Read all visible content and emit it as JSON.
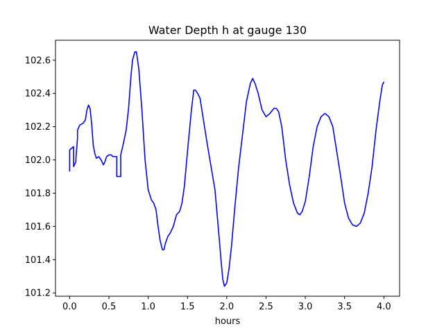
{
  "chart_data": {
    "type": "line",
    "title": "Water Depth h at gauge 130",
    "xlabel": "hours",
    "ylabel": "",
    "xlim": [
      -0.18,
      4.2
    ],
    "ylim": [
      101.18,
      102.72
    ],
    "xticks": [
      0.0,
      0.5,
      1.0,
      1.5,
      2.0,
      2.5,
      3.0,
      3.5,
      4.0
    ],
    "xtick_labels": [
      "0.0",
      "0.5",
      "1.0",
      "1.5",
      "2.0",
      "2.5",
      "3.0",
      "3.5",
      "4.0"
    ],
    "yticks": [
      101.2,
      101.4,
      101.6,
      101.8,
      102.0,
      102.2,
      102.4,
      102.6
    ],
    "ytick_labels": [
      "101.2",
      "101.4",
      "101.6",
      "101.8",
      "102.0",
      "102.2",
      "102.4",
      "102.6"
    ],
    "grid": false,
    "series": [
      {
        "color": "#0000ff",
        "x": [
          0.0,
          0.0,
          0.05,
          0.05,
          0.08,
          0.08,
          0.1,
          0.1,
          0.13,
          0.17,
          0.2,
          0.22,
          0.24,
          0.26,
          0.28,
          0.3,
          0.32,
          0.34,
          0.37,
          0.4,
          0.43,
          0.45,
          0.47,
          0.5,
          0.53,
          0.55,
          0.6,
          0.6,
          0.65,
          0.65,
          0.68,
          0.72,
          0.75,
          0.78,
          0.8,
          0.83,
          0.85,
          0.88,
          0.92,
          0.96,
          1.0,
          1.04,
          1.07,
          1.1,
          1.12,
          1.15,
          1.18,
          1.2,
          1.22,
          1.25,
          1.28,
          1.32,
          1.36,
          1.4,
          1.43,
          1.46,
          1.5,
          1.55,
          1.58,
          1.6,
          1.63,
          1.66,
          1.7,
          1.75,
          1.8,
          1.85,
          1.9,
          1.93,
          1.95,
          1.97,
          2.0,
          2.03,
          2.06,
          2.1,
          2.15,
          2.2,
          2.25,
          2.3,
          2.33,
          2.36,
          2.4,
          2.45,
          2.5,
          2.55,
          2.6,
          2.63,
          2.66,
          2.7,
          2.75,
          2.8,
          2.85,
          2.9,
          2.93,
          2.96,
          3.0,
          3.05,
          3.1,
          3.15,
          3.2,
          3.25,
          3.3,
          3.35,
          3.4,
          3.45,
          3.5,
          3.55,
          3.6,
          3.65,
          3.7,
          3.75,
          3.8,
          3.85,
          3.9,
          3.95,
          3.98,
          4.0
        ],
        "y": [
          101.93,
          102.06,
          102.08,
          101.96,
          101.99,
          102.01,
          102.13,
          102.18,
          102.21,
          102.22,
          102.24,
          102.3,
          102.33,
          102.31,
          102.22,
          102.09,
          102.04,
          102.01,
          102.02,
          102.0,
          101.97,
          101.99,
          102.02,
          102.03,
          102.03,
          102.02,
          102.02,
          101.9,
          101.9,
          102.03,
          102.09,
          102.18,
          102.31,
          102.5,
          102.6,
          102.65,
          102.65,
          102.55,
          102.3,
          102.0,
          101.82,
          101.76,
          101.74,
          101.7,
          101.62,
          101.52,
          101.46,
          101.46,
          101.5,
          101.54,
          101.56,
          101.6,
          101.67,
          101.69,
          101.74,
          101.84,
          102.05,
          102.3,
          102.42,
          102.42,
          102.4,
          102.37,
          102.25,
          102.1,
          101.96,
          101.82,
          101.55,
          101.38,
          101.28,
          101.24,
          101.26,
          101.35,
          101.48,
          101.7,
          101.95,
          102.15,
          102.35,
          102.46,
          102.49,
          102.46,
          102.4,
          102.3,
          102.26,
          102.28,
          102.31,
          102.31,
          102.29,
          102.2,
          102.0,
          101.85,
          101.74,
          101.68,
          101.67,
          101.69,
          101.75,
          101.9,
          102.08,
          102.2,
          102.26,
          102.28,
          102.26,
          102.2,
          102.05,
          101.9,
          101.74,
          101.65,
          101.61,
          101.6,
          101.62,
          101.68,
          101.8,
          101.96,
          102.18,
          102.36,
          102.45,
          102.47
        ]
      }
    ]
  }
}
